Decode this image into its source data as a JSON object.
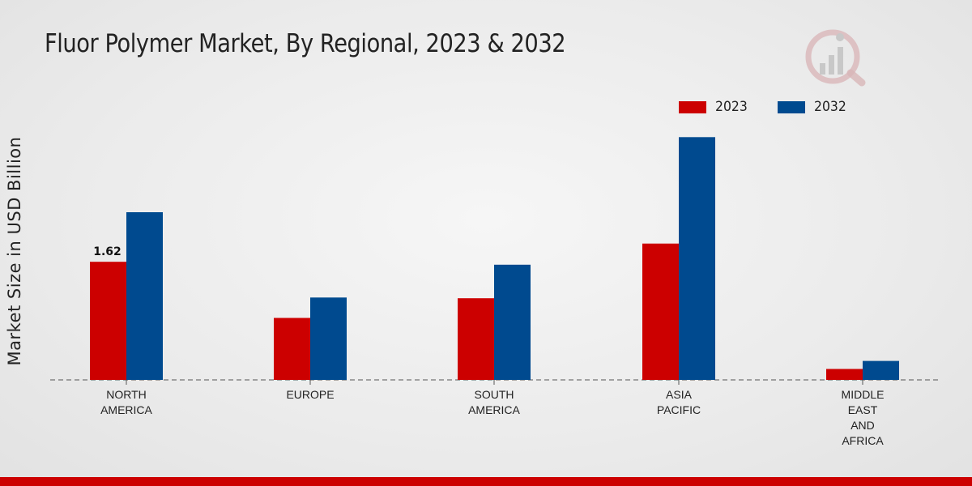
{
  "colors": {
    "2023": "#cc0000",
    "2032": "#004a8f",
    "accent": "#cc0000"
  },
  "header": {
    "title": "Fluor Polymer Market, By Regional, 2023 & 2032"
  },
  "logo": {
    "icon": "market-research-logo-icon"
  },
  "legend": [
    {
      "label": "2023",
      "color": "#cc0000"
    },
    {
      "label": "2032",
      "color": "#004a8f"
    }
  ],
  "chart_data": {
    "type": "bar",
    "title": "Fluor Polymer Market, By Regional, 2023 & 2032",
    "xlabel": "",
    "ylabel": "Market Size in USD Billion",
    "ylim": [
      0,
      4
    ],
    "grid": false,
    "legend_position": "top-right",
    "categories": [
      [
        "NORTH",
        "AMERICA"
      ],
      [
        "EUROPE"
      ],
      [
        "SOUTH",
        "AMERICA"
      ],
      [
        "ASIA",
        "PACIFIC"
      ],
      [
        "MIDDLE",
        "EAST",
        "AND",
        "AFRICA"
      ]
    ],
    "series": [
      {
        "name": "2023",
        "color": "#cc0000",
        "values": [
          1.62,
          0.85,
          1.12,
          1.87,
          0.15
        ]
      },
      {
        "name": "2032",
        "color": "#004a8f",
        "values": [
          2.3,
          1.13,
          1.58,
          3.33,
          0.26
        ]
      }
    ],
    "data_labels": [
      {
        "series": 0,
        "index": 0,
        "text": "1.62"
      }
    ]
  }
}
